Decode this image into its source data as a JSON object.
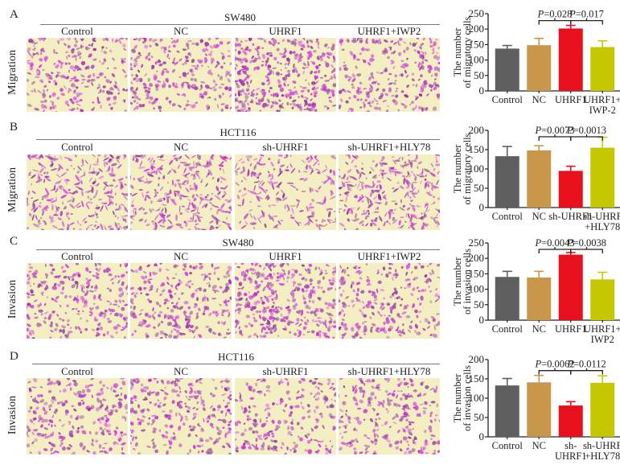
{
  "colors": {
    "control": "#5f5f5f",
    "nc": "#c9974a",
    "treat": "#e8101c",
    "rescue": "#c5c800",
    "cells": "#a0289a",
    "background": "#f3efc3"
  },
  "panels": [
    {
      "letter": "A",
      "cell_line": "SW480",
      "row_label": "Migration",
      "columns": [
        "Control",
        "NC",
        "UHRF1",
        "UHRF1+IWP2"
      ],
      "density": [
        0.55,
        0.6,
        1.0,
        0.5
      ]
    },
    {
      "letter": "B",
      "cell_line": "HCT116",
      "row_label": "Migration",
      "columns": [
        "Control",
        "NC",
        "sh-UHRF1",
        "sh-UHRF1+HLY78"
      ],
      "density": [
        0.7,
        0.7,
        0.35,
        0.7
      ]
    },
    {
      "letter": "C",
      "cell_line": "SW480",
      "row_label": "Invasion",
      "columns": [
        "Control",
        "NC",
        "UHRF1",
        "UHRF1+IWP2"
      ],
      "density": [
        0.55,
        0.55,
        0.95,
        0.5
      ]
    },
    {
      "letter": "D",
      "cell_line": "HCT116",
      "row_label": "Invasion",
      "columns": [
        "Control",
        "NC",
        "sh-UHRF1",
        "sh-UHRF1+HLY78"
      ],
      "density": [
        0.5,
        0.55,
        0.4,
        0.5
      ]
    }
  ],
  "chart_data": [
    {
      "type": "bar",
      "panel": "A",
      "ylabel_line1": "The number",
      "ylabel_line2": "of migratory cells",
      "categories": [
        [
          "Control"
        ],
        [
          "NC"
        ],
        [
          "UHRF1"
        ],
        [
          "UHRF1+",
          "IWP-2"
        ]
      ],
      "values": [
        137,
        148,
        202,
        142
      ],
      "errors": [
        10,
        22,
        10,
        20
      ],
      "ylim": [
        0,
        250
      ],
      "yticks": [
        0,
        50,
        100,
        150,
        200,
        250
      ],
      "annotations": [
        {
          "label": "P=0.028",
          "from": 1,
          "to": 2
        },
        {
          "label": "P=0.017",
          "from": 2,
          "to": 3
        }
      ]
    },
    {
      "type": "bar",
      "panel": "B",
      "ylabel_line1": "The number",
      "ylabel_line2": "of migratory cells",
      "categories": [
        [
          "Control"
        ],
        [
          "NC"
        ],
        [
          "sh-UHRF1"
        ],
        [
          "sh-UHRF",
          "+HLY78"
        ]
      ],
      "values": [
        133,
        148,
        95,
        155
      ],
      "errors": [
        25,
        12,
        12,
        27
      ],
      "ylim": [
        0,
        200
      ],
      "yticks": [
        0,
        50,
        100,
        150,
        200
      ],
      "annotations": [
        {
          "label": "P=0.0073",
          "from": 1,
          "to": 2
        },
        {
          "label": "P=0.0013",
          "from": 2,
          "to": 3
        }
      ]
    },
    {
      "type": "bar",
      "panel": "C",
      "ylabel_line1": "The number",
      "ylabel_line2": "of invasion cells",
      "categories": [
        [
          "Control"
        ],
        [
          "NC"
        ],
        [
          "UHRF1"
        ],
        [
          "UHRF1+",
          "IWP2"
        ]
      ],
      "values": [
        140,
        138,
        212,
        132
      ],
      "errors": [
        18,
        20,
        7,
        23
      ],
      "ylim": [
        0,
        250
      ],
      "yticks": [
        0,
        50,
        100,
        150,
        200,
        250
      ],
      "annotations": [
        {
          "label": "P=0.0043",
          "from": 1,
          "to": 2
        },
        {
          "label": "P=0.0038",
          "from": 2,
          "to": 3
        }
      ]
    },
    {
      "type": "bar",
      "panel": "D",
      "ylabel_line1": "The number",
      "ylabel_line2": "of invasion cells",
      "categories": [
        [
          "Control"
        ],
        [
          "NC"
        ],
        [
          "sh-",
          "UHRF1"
        ],
        [
          "sh-UHRF",
          "+HLY78"
        ]
      ],
      "values": [
        133,
        141,
        81,
        140
      ],
      "errors": [
        18,
        18,
        10,
        18
      ],
      "ylim": [
        0,
        200
      ],
      "yticks": [
        0,
        50,
        100,
        150,
        200
      ],
      "annotations": [
        {
          "label": "P=0.0062",
          "from": 1,
          "to": 2
        },
        {
          "label": "P=0.0112",
          "from": 2,
          "to": 3
        }
      ]
    }
  ]
}
